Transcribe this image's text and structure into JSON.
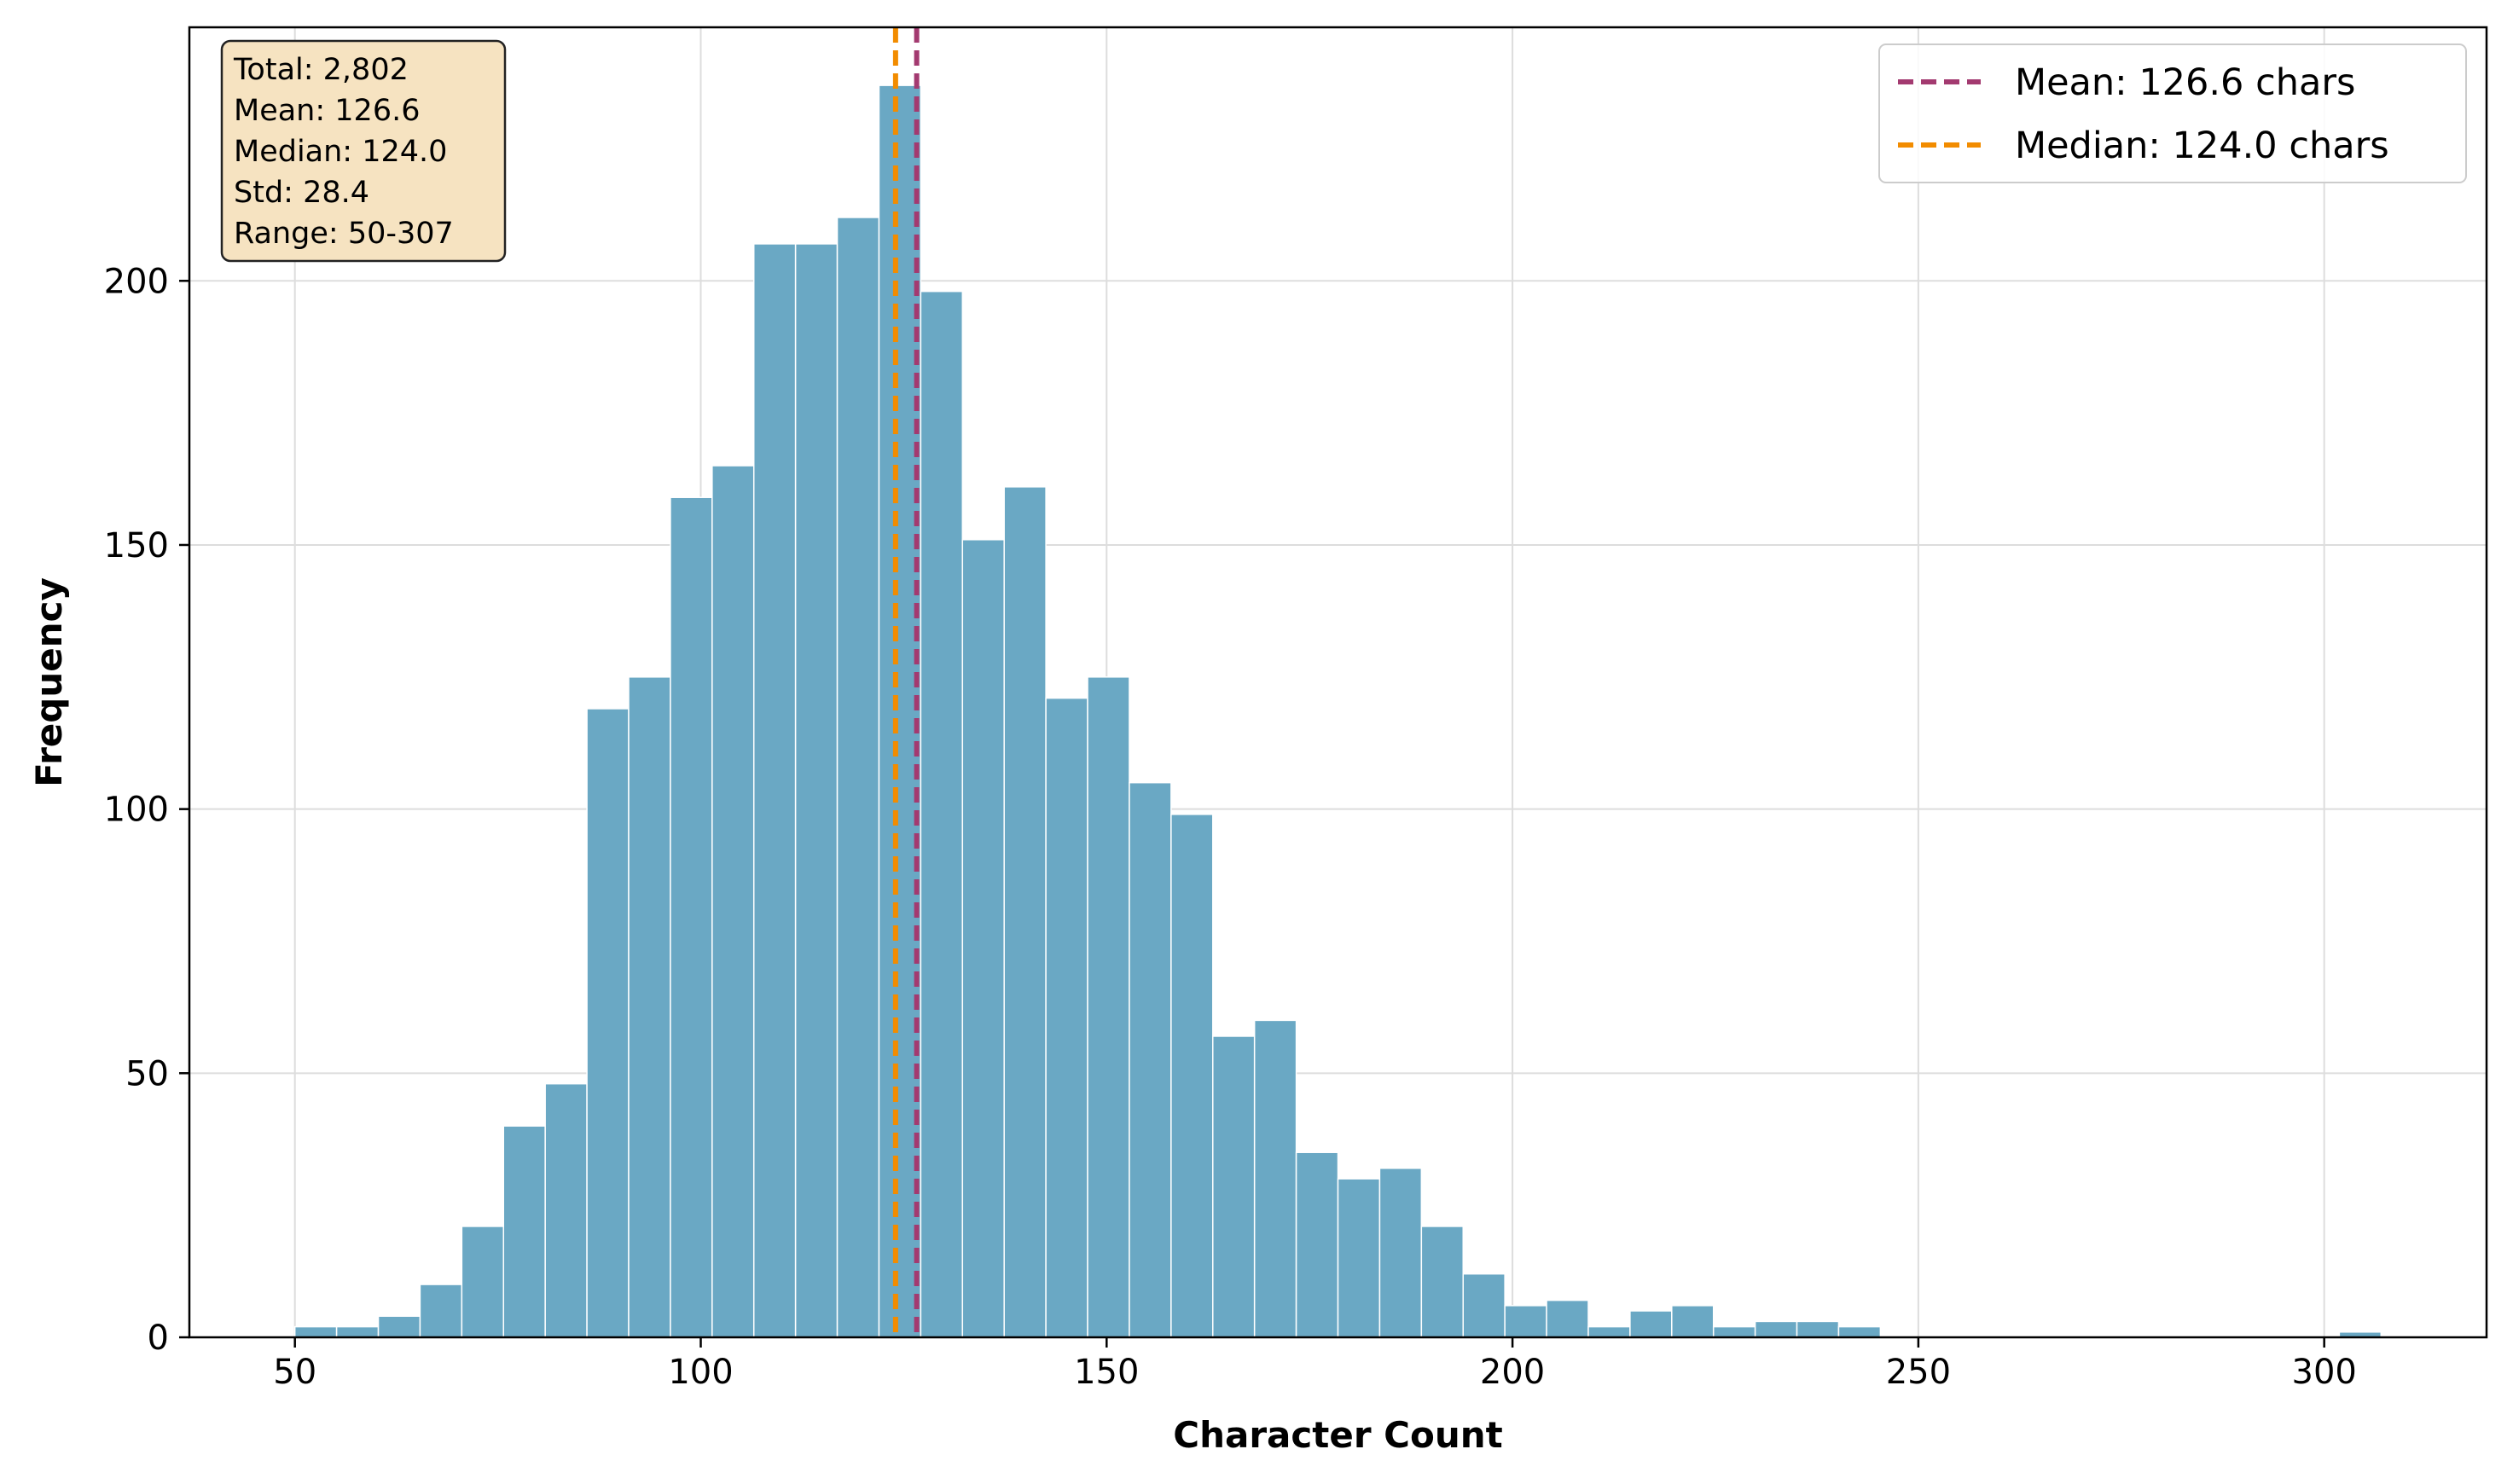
{
  "chart_data": {
    "type": "bar",
    "title": "",
    "xlabel": "Character Count",
    "ylabel": "Frequency",
    "xlim": [
      37,
      320
    ],
    "ylim": [
      0,
      248
    ],
    "xticks": [
      50,
      100,
      150,
      200,
      250,
      300
    ],
    "yticks": [
      0,
      50,
      100,
      150,
      200
    ],
    "grid": true,
    "legend_position": "top-right",
    "colors": {
      "bar": "#6aa8c4",
      "bar_edge": "#ffffff",
      "mean_line": "#a33a70",
      "median_line": "#f28c00",
      "stats_box": "#f6e3c1"
    },
    "bin_start": 50,
    "bin_width": 5.14,
    "values": [
      2,
      2,
      4,
      10,
      21,
      40,
      48,
      119,
      125,
      159,
      165,
      207,
      207,
      212,
      237,
      198,
      151,
      161,
      121,
      125,
      105,
      99,
      57,
      60,
      35,
      30,
      32,
      21,
      12,
      6,
      7,
      2,
      5,
      6,
      2,
      3,
      3,
      2,
      0,
      0,
      0,
      0,
      0,
      0,
      0,
      0,
      0,
      0,
      0,
      1
    ],
    "mean_line": {
      "x": 126.6,
      "label": "Mean: 126.6 chars"
    },
    "median_line": {
      "x": 124.0,
      "label": "Median: 124.0 chars"
    },
    "stats_box": {
      "lines": [
        "Total: 2,802",
        "Mean: 126.6",
        "Median: 124.0",
        "Std: 28.4",
        "Range: 50-307"
      ]
    }
  }
}
